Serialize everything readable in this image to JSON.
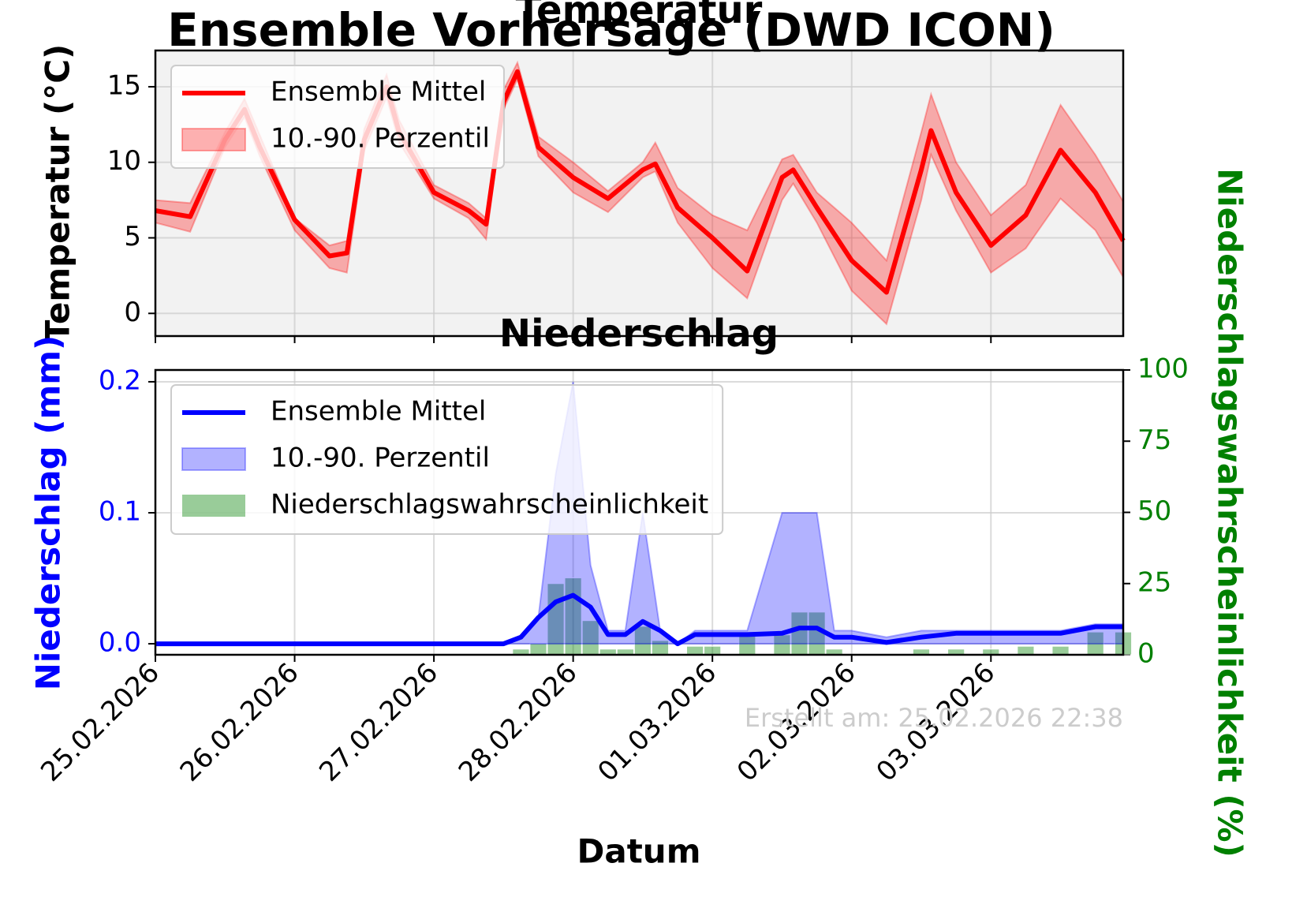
{
  "title": "Ensemble Vorhersage (DWD ICON)",
  "footnote": "Erstellt am: 25.02.2026 22:38",
  "chart_data": [
    {
      "type": "line",
      "title": "Temperatur",
      "y_label": "Temperatur (°C)",
      "x": [
        0,
        0.25,
        0.5,
        0.64,
        0.75,
        1,
        1.25,
        1.375,
        1.5,
        1.66,
        1.75,
        2,
        2.25,
        2.375,
        2.5,
        2.6,
        2.75,
        3,
        3.25,
        3.5,
        3.59,
        3.75,
        4,
        4.25,
        4.5,
        4.58,
        4.75,
        5,
        5.25,
        5.5,
        5.57,
        5.75,
        6,
        6.25,
        6.5,
        6.75,
        6.95
      ],
      "series": [
        {
          "name": "Ensemble Mittel",
          "color": "#ff0000",
          "values": [
            6.8,
            6.4,
            11.5,
            13.5,
            11,
            6.2,
            3.8,
            4.0,
            11.5,
            15,
            12,
            8,
            6.8,
            5.9,
            14,
            16,
            11,
            9,
            7.6,
            9.5,
            9.9,
            7,
            5,
            2.8,
            9,
            9.5,
            7,
            3.5,
            1.4,
            9.5,
            12.1,
            8,
            4.5,
            6.5,
            10.8,
            8,
            4.8
          ]
        }
      ],
      "band": {
        "name": "10.-90. Perzentil",
        "color": "#ff0000",
        "lower": [
          6.0,
          5.4,
          11,
          13,
          10.4,
          5.5,
          3.0,
          2.7,
          10.8,
          14.3,
          11.3,
          7.6,
          6.3,
          4.9,
          13.5,
          15.5,
          10.4,
          8,
          6.7,
          9,
          9.4,
          6,
          3,
          1,
          7.5,
          8.6,
          6,
          1.5,
          -0.7,
          7.5,
          10.5,
          6.8,
          2.7,
          4.3,
          7.6,
          5.5,
          2.4
        ],
        "upper": [
          7.5,
          7.3,
          12,
          14.2,
          11.8,
          6.3,
          4.5,
          4.8,
          12.2,
          15.8,
          12.8,
          8.5,
          7.3,
          6.3,
          14.8,
          16.6,
          11.7,
          10,
          8.1,
          10,
          11.3,
          8.3,
          6.5,
          5.5,
          10.2,
          10.5,
          8,
          6,
          3.5,
          12,
          14.5,
          10,
          6.5,
          8.5,
          13.8,
          10.5,
          7.4
        ]
      },
      "xlim": [
        0,
        6.95
      ],
      "ylim": [
        -1.5,
        17.4
      ],
      "yticks": [
        0,
        5,
        10,
        15
      ],
      "y_color": "#000000",
      "grid": true,
      "legend": "upper left"
    },
    {
      "type": "line",
      "title": "Niederschlag",
      "x_label": "Datum",
      "y_label": "Niederschlag (mm)",
      "y2_label": "Niederschlagswahrscheinlichkeit (%)",
      "x": [
        0,
        2.5,
        2.625,
        2.75,
        2.875,
        3.0,
        3.125,
        3.25,
        3.375,
        3.5,
        3.625,
        3.75,
        3.875,
        4.0,
        4.25,
        4.5,
        4.625,
        4.75,
        4.875,
        5.0,
        5.25,
        5.5,
        5.75,
        6.0,
        6.25,
        6.5,
        6.75,
        6.95
      ],
      "series": [
        {
          "name": "Ensemble Mittel",
          "color": "#0000ff",
          "values": [
            0,
            0,
            0.005,
            0.02,
            0.032,
            0.037,
            0.028,
            0.007,
            0.007,
            0.017,
            0.01,
            0,
            0.007,
            0.007,
            0.007,
            0.008,
            0.012,
            0.012,
            0.005,
            0.005,
            0.001,
            0.005,
            0.008,
            0.008,
            0.008,
            0.008,
            0.013,
            0.013
          ]
        },
        {
          "name": "Niederschlagswahrscheinlichkeit",
          "color": "#008000",
          "axis": "y2",
          "values": [
            0,
            0,
            2,
            4,
            25,
            27,
            12,
            2,
            2,
            10,
            5,
            0,
            3,
            3,
            7,
            7,
            15,
            15,
            2,
            0,
            0,
            2,
            2,
            2,
            3,
            3,
            8,
            8
          ]
        }
      ],
      "band": {
        "name": "10.-90. Perzentil",
        "color": "#0000ff",
        "lower": [
          0,
          0,
          0,
          0,
          0,
          0,
          0,
          0,
          0,
          0,
          0,
          0,
          0,
          0,
          0,
          0,
          0,
          0,
          0,
          0,
          0,
          0,
          0,
          0,
          0,
          0,
          0,
          0
        ],
        "upper": [
          0,
          0,
          0.005,
          0.02,
          0.13,
          0.2,
          0.06,
          0.01,
          0.01,
          0.1,
          0.01,
          0,
          0.01,
          0.01,
          0.01,
          0.1,
          0.1,
          0.1,
          0.01,
          0.01,
          0.005,
          0.01,
          0.01,
          0.01,
          0.01,
          0.01,
          0.015,
          0.015
        ]
      },
      "xlim": [
        0,
        6.95
      ],
      "ylim": [
        -0.0084,
        0.209
      ],
      "yticks": [
        {
          "value": 0,
          "label": "0.0"
        },
        0.1,
        0.2
      ],
      "y_color": "#0000ff",
      "y2lim": [
        0,
        100
      ],
      "y2ticks": [
        0,
        25,
        50,
        75,
        100
      ],
      "y2_color": "#008000",
      "xticks": [
        {
          "value": 0,
          "label": "25.02.2026"
        },
        {
          "value": 1,
          "label": "26.02.2026"
        },
        {
          "value": 2,
          "label": "27.02.2026"
        },
        {
          "value": 3,
          "label": "28.02.2026"
        },
        {
          "value": 4,
          "label": "01.03.2026"
        },
        {
          "value": 5,
          "label": "02.03.2026"
        },
        {
          "value": 6,
          "label": "03.03.2026"
        }
      ],
      "grid": true,
      "legend": "upper left"
    }
  ]
}
